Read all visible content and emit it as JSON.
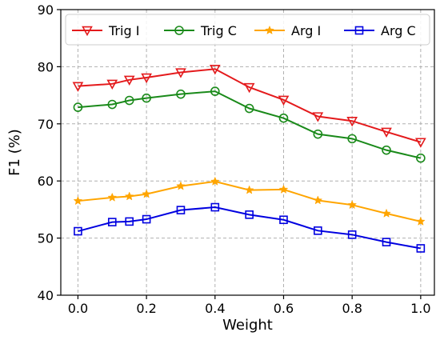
{
  "chart_data": {
    "type": "line",
    "title": "",
    "xlabel": "Weight",
    "ylabel": "F1 (%)",
    "xlim": [
      -0.05,
      1.04
    ],
    "ylim": [
      40,
      90
    ],
    "grid": true,
    "legend_position": "top",
    "xticks": [
      0.0,
      0.2,
      0.4,
      0.6,
      0.8,
      1.0
    ],
    "xtick_labels": [
      "0.0",
      "0.2",
      "0.4",
      "0.6",
      "0.8",
      "1.0"
    ],
    "yticks": [
      40,
      50,
      60,
      70,
      80,
      90
    ],
    "ytick_labels": [
      "40",
      "50",
      "60",
      "70",
      "80",
      "90"
    ],
    "x": [
      0.0,
      0.1,
      0.15,
      0.2,
      0.3,
      0.4,
      0.5,
      0.6,
      0.7,
      0.8,
      0.9,
      1.0
    ],
    "series": [
      {
        "name": "Trig I",
        "color": "#e41a1c",
        "marker": "triangle-down",
        "values": [
          76.6,
          77.0,
          77.7,
          78.1,
          79.0,
          79.6,
          76.4,
          74.2,
          71.3,
          70.5,
          68.6,
          66.8
        ]
      },
      {
        "name": "Trig C",
        "color": "#1a8a1a",
        "marker": "circle",
        "values": [
          72.9,
          73.4,
          74.1,
          74.5,
          75.2,
          75.7,
          72.7,
          71.0,
          68.2,
          67.4,
          65.4,
          64.0
        ]
      },
      {
        "name": "Arg I",
        "color": "#ffa500",
        "marker": "star",
        "values": [
          56.5,
          57.1,
          57.3,
          57.7,
          59.1,
          59.9,
          58.4,
          58.5,
          56.6,
          55.8,
          54.3,
          52.9
        ]
      },
      {
        "name": "Arg C",
        "color": "#0000e0",
        "marker": "square",
        "values": [
          51.2,
          52.8,
          52.9,
          53.3,
          54.9,
          55.4,
          54.1,
          53.2,
          51.3,
          50.6,
          49.3,
          48.2
        ]
      }
    ]
  }
}
